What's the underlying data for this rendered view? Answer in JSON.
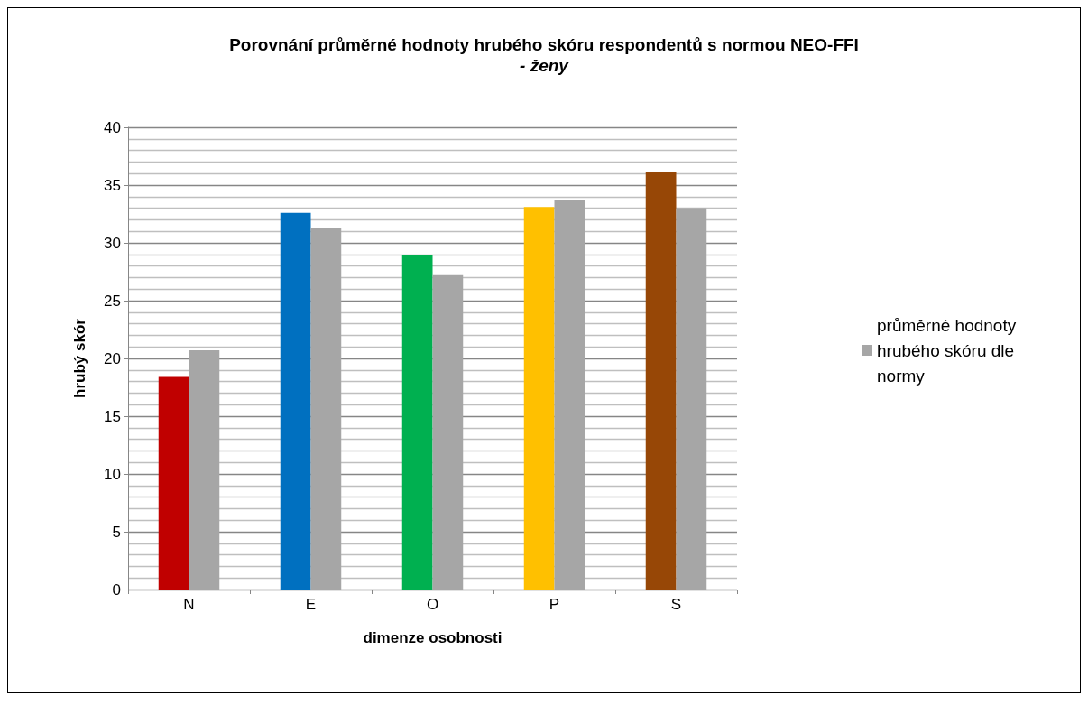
{
  "chart_data": {
    "type": "bar",
    "title": "Porovnání průměrné hodnoty hrubého skóru respondentů s normou NEO-FFI",
    "subtitle": "- ženy",
    "xlabel": "dimenze osobnosti",
    "ylabel": "hrubý skór",
    "categories": [
      "N",
      "E",
      "O",
      "P",
      "S"
    ],
    "series": [
      {
        "colors": [
          "#c00000",
          "#0070c0",
          "#00b050",
          "#ffc000",
          "#974706"
        ],
        "values": [
          18.4,
          32.6,
          28.9,
          33.1,
          36.1
        ]
      },
      {
        "name": "průměrné hodnoty hrubého skóru dle normy",
        "color": "#a6a6a6",
        "values": [
          20.7,
          31.3,
          27.2,
          33.7,
          33.0
        ]
      }
    ],
    "ylim": [
      0,
      40
    ],
    "yticks": [
      0,
      5,
      10,
      15,
      20,
      25,
      30,
      35,
      40
    ],
    "grid": "y",
    "legend": "right"
  }
}
